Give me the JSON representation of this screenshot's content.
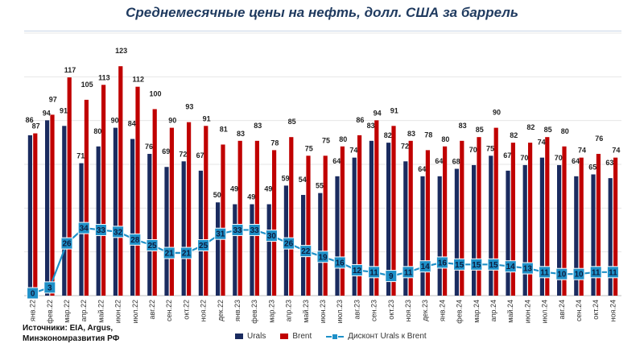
{
  "chart_data": {
    "type": "bar",
    "title": "Среднемесячные цены на нефть, долл. США за баррель",
    "categories": [
      "янв.22",
      "фев.22",
      "мар.22",
      "апр.22",
      "май.22",
      "июн.22",
      "июл.22",
      "авг.22",
      "сен.22",
      "окт.22",
      "ноя.22",
      "дек.22",
      "янв.23",
      "фев.23",
      "мар.23",
      "апр.23",
      "май.23",
      "июн.23",
      "июл.23",
      "авг.23",
      "сен.23",
      "окт.23",
      "ноя.23",
      "дек.23",
      "янв.24",
      "фев.24",
      "мар.24",
      "апр.24",
      "май.24",
      "июн.24",
      "июл.24",
      "авг.24",
      "сен.24",
      "окт.24",
      "ноя.24"
    ],
    "series": [
      {
        "name": "Urals",
        "color": "#1a2b5f",
        "values": [
          86,
          94,
          91,
          71,
          80,
          90,
          84,
          76,
          69,
          72,
          67,
          50,
          49,
          49,
          49,
          59,
          54,
          55,
          64,
          74,
          83,
          82,
          72,
          64,
          64,
          68,
          70,
          75,
          67,
          70,
          74,
          70,
          64,
          65,
          63
        ]
      },
      {
        "name": "Brent",
        "color": "#c00000",
        "values": [
          87,
          97,
          117,
          105,
          113,
          123,
          112,
          100,
          90,
          93,
          91,
          81,
          83,
          83,
          78,
          85,
          75,
          75,
          80,
          86,
          94,
          91,
          83,
          78,
          80,
          83,
          85,
          90,
          82,
          82,
          85,
          80,
          74,
          76,
          74
        ]
      },
      {
        "name": "Дисконт Urals к Brent",
        "color": "#1e90c8",
        "type": "line",
        "values": [
          0,
          3,
          26,
          34,
          33,
          32,
          28,
          25,
          21,
          21,
          25,
          31,
          33,
          33,
          30,
          26,
          22,
          19,
          16,
          12,
          11,
          9,
          11,
          14,
          16,
          15,
          15,
          15,
          14,
          13,
          11,
          10,
          10,
          11,
          11
        ]
      }
    ],
    "ylim": [
      0,
      130
    ],
    "grid": true,
    "legend": "bottom"
  },
  "source_note": "Источники: EIA, Argus,\nМинэкономразвития РФ"
}
